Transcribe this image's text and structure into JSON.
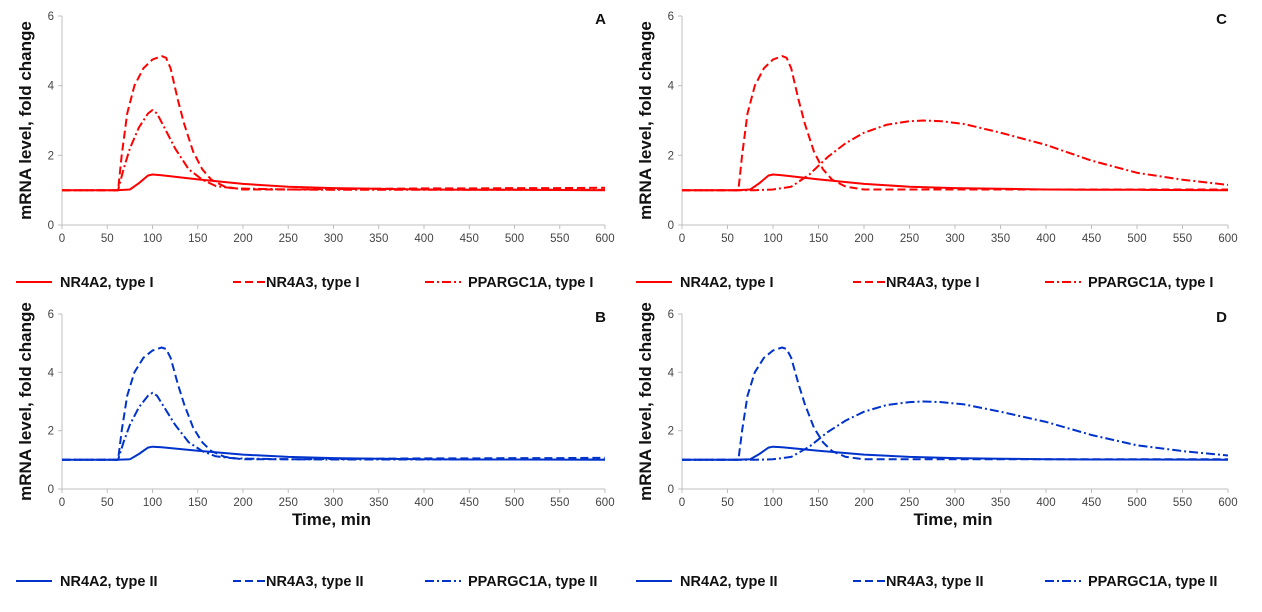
{
  "chart_data": [
    {
      "type": "line",
      "panel": "A",
      "ylabel": "mRNA level, fold change",
      "xlabel": "",
      "xlim": [
        0,
        600
      ],
      "ylim": [
        0,
        6
      ],
      "xticks": [
        0,
        50,
        100,
        150,
        200,
        250,
        300,
        350,
        400,
        450,
        500,
        550,
        600
      ],
      "yticks": [
        0,
        2,
        4,
        6
      ],
      "color": "#ff0000",
      "series": [
        {
          "name": "NR4A2, type I",
          "style": "solid",
          "points": [
            [
              0,
              1
            ],
            [
              60,
              1
            ],
            [
              75,
              1.02
            ],
            [
              85,
              1.2
            ],
            [
              95,
              1.42
            ],
            [
              100,
              1.45
            ],
            [
              110,
              1.43
            ],
            [
              150,
              1.31
            ],
            [
              200,
              1.18
            ],
            [
              250,
              1.1
            ],
            [
              300,
              1.06
            ],
            [
              350,
              1.04
            ],
            [
              400,
              1.02
            ],
            [
              450,
              1.01
            ],
            [
              500,
              1.01
            ],
            [
              600,
              1
            ]
          ]
        },
        {
          "name": "NR4A3, type I",
          "style": "dashed",
          "points": [
            [
              0,
              1
            ],
            [
              62,
              1
            ],
            [
              66,
              2.0
            ],
            [
              72,
              3.2
            ],
            [
              80,
              4.0
            ],
            [
              90,
              4.5
            ],
            [
              100,
              4.75
            ],
            [
              110,
              4.85
            ],
            [
              115,
              4.8
            ],
            [
              120,
              4.5
            ],
            [
              128,
              3.6
            ],
            [
              135,
              2.9
            ],
            [
              145,
              2.1
            ],
            [
              155,
              1.6
            ],
            [
              165,
              1.3
            ],
            [
              180,
              1.1
            ],
            [
              200,
              1.02
            ],
            [
              250,
              1.02
            ],
            [
              300,
              1.03
            ],
            [
              350,
              1.04
            ],
            [
              400,
              1.05
            ],
            [
              450,
              1.05
            ],
            [
              500,
              1.06
            ],
            [
              550,
              1.06
            ],
            [
              600,
              1.07
            ]
          ]
        },
        {
          "name": "PPARGC1A, type I",
          "style": "dashdot",
          "points": [
            [
              0,
              1
            ],
            [
              62,
              1
            ],
            [
              68,
              1.6
            ],
            [
              75,
              2.2
            ],
            [
              85,
              2.8
            ],
            [
              95,
              3.2
            ],
            [
              100,
              3.3
            ],
            [
              105,
              3.2
            ],
            [
              115,
              2.7
            ],
            [
              125,
              2.2
            ],
            [
              140,
              1.6
            ],
            [
              155,
              1.3
            ],
            [
              170,
              1.12
            ],
            [
              190,
              1.05
            ],
            [
              250,
              1.02
            ],
            [
              300,
              1.01
            ],
            [
              400,
              1.01
            ],
            [
              500,
              1.01
            ],
            [
              600,
              1.01
            ]
          ]
        }
      ]
    },
    {
      "type": "line",
      "panel": "C",
      "ylabel": "mRNA level, fold change",
      "xlabel": "",
      "xlim": [
        0,
        600
      ],
      "ylim": [
        0,
        6
      ],
      "xticks": [
        0,
        50,
        100,
        150,
        200,
        250,
        300,
        350,
        400,
        450,
        500,
        550,
        600
      ],
      "yticks": [
        0,
        2,
        4,
        6
      ],
      "color": "#ff0000",
      "series": [
        {
          "name": "NR4A2, type I",
          "style": "solid",
          "points": [
            [
              0,
              1
            ],
            [
              60,
              1
            ],
            [
              75,
              1.02
            ],
            [
              85,
              1.2
            ],
            [
              95,
              1.42
            ],
            [
              100,
              1.45
            ],
            [
              110,
              1.43
            ],
            [
              150,
              1.31
            ],
            [
              200,
              1.18
            ],
            [
              250,
              1.1
            ],
            [
              300,
              1.06
            ],
            [
              350,
              1.04
            ],
            [
              400,
              1.02
            ],
            [
              450,
              1.01
            ],
            [
              500,
              1.01
            ],
            [
              600,
              1
            ]
          ]
        },
        {
          "name": "NR4A3, type I",
          "style": "dashed",
          "points": [
            [
              0,
              1
            ],
            [
              62,
              1
            ],
            [
              66,
              2.0
            ],
            [
              72,
              3.2
            ],
            [
              80,
              4.0
            ],
            [
              90,
              4.5
            ],
            [
              100,
              4.75
            ],
            [
              110,
              4.85
            ],
            [
              115,
              4.8
            ],
            [
              120,
              4.5
            ],
            [
              128,
              3.6
            ],
            [
              135,
              2.9
            ],
            [
              145,
              2.1
            ],
            [
              155,
              1.6
            ],
            [
              165,
              1.3
            ],
            [
              180,
              1.1
            ],
            [
              200,
              1.02
            ],
            [
              250,
              1.02
            ],
            [
              300,
              1.02
            ],
            [
              400,
              1.02
            ],
            [
              500,
              1.02
            ],
            [
              600,
              1.02
            ]
          ]
        },
        {
          "name": "PPARGC1A, type I",
          "style": "dashdot",
          "points": [
            [
              0,
              1
            ],
            [
              80,
              1
            ],
            [
              100,
              1.02
            ],
            [
              120,
              1.1
            ],
            [
              140,
              1.45
            ],
            [
              160,
              1.95
            ],
            [
              180,
              2.35
            ],
            [
              200,
              2.65
            ],
            [
              225,
              2.88
            ],
            [
              250,
              2.98
            ],
            [
              265,
              3.0
            ],
            [
              285,
              2.98
            ],
            [
              310,
              2.9
            ],
            [
              350,
              2.65
            ],
            [
              400,
              2.3
            ],
            [
              450,
              1.85
            ],
            [
              500,
              1.5
            ],
            [
              550,
              1.3
            ],
            [
              600,
              1.15
            ]
          ]
        }
      ]
    },
    {
      "type": "line",
      "panel": "B",
      "ylabel": "mRNA level, fold change",
      "xlabel": "Time, min",
      "xlim": [
        0,
        600
      ],
      "ylim": [
        0,
        6
      ],
      "xticks": [
        0,
        50,
        100,
        150,
        200,
        250,
        300,
        350,
        400,
        450,
        500,
        550,
        600
      ],
      "yticks": [
        0,
        2,
        4,
        6
      ],
      "color": "#0033cc",
      "series": [
        {
          "name": "NR4A2, type II",
          "style": "solid",
          "points": [
            [
              0,
              1
            ],
            [
              60,
              1
            ],
            [
              75,
              1.02
            ],
            [
              85,
              1.2
            ],
            [
              95,
              1.42
            ],
            [
              100,
              1.45
            ],
            [
              110,
              1.43
            ],
            [
              150,
              1.31
            ],
            [
              200,
              1.18
            ],
            [
              250,
              1.1
            ],
            [
              300,
              1.06
            ],
            [
              350,
              1.04
            ],
            [
              400,
              1.02
            ],
            [
              450,
              1.01
            ],
            [
              500,
              1.01
            ],
            [
              600,
              1
            ]
          ]
        },
        {
          "name": "NR4A3, type II",
          "style": "dashed",
          "points": [
            [
              0,
              1
            ],
            [
              62,
              1
            ],
            [
              66,
              2.0
            ],
            [
              72,
              3.2
            ],
            [
              80,
              4.0
            ],
            [
              90,
              4.5
            ],
            [
              100,
              4.75
            ],
            [
              110,
              4.85
            ],
            [
              115,
              4.8
            ],
            [
              120,
              4.5
            ],
            [
              128,
              3.6
            ],
            [
              135,
              2.9
            ],
            [
              145,
              2.1
            ],
            [
              155,
              1.6
            ],
            [
              165,
              1.3
            ],
            [
              180,
              1.1
            ],
            [
              200,
              1.02
            ],
            [
              250,
              1.02
            ],
            [
              300,
              1.03
            ],
            [
              350,
              1.04
            ],
            [
              400,
              1.05
            ],
            [
              450,
              1.05
            ],
            [
              500,
              1.06
            ],
            [
              550,
              1.06
            ],
            [
              600,
              1.07
            ]
          ]
        },
        {
          "name": "PPARGC1A, type II",
          "style": "dashdot",
          "points": [
            [
              0,
              1
            ],
            [
              62,
              1
            ],
            [
              68,
              1.6
            ],
            [
              75,
              2.2
            ],
            [
              85,
              2.8
            ],
            [
              95,
              3.2
            ],
            [
              100,
              3.3
            ],
            [
              105,
              3.2
            ],
            [
              115,
              2.7
            ],
            [
              125,
              2.2
            ],
            [
              140,
              1.6
            ],
            [
              155,
              1.3
            ],
            [
              170,
              1.12
            ],
            [
              190,
              1.05
            ],
            [
              250,
              1.02
            ],
            [
              300,
              1.01
            ],
            [
              400,
              1.01
            ],
            [
              500,
              1.01
            ],
            [
              600,
              1.01
            ]
          ]
        }
      ]
    },
    {
      "type": "line",
      "panel": "D",
      "ylabel": "mRNA level, fold change",
      "xlabel": "Time, min",
      "xlim": [
        0,
        600
      ],
      "ylim": [
        0,
        6
      ],
      "xticks": [
        0,
        50,
        100,
        150,
        200,
        250,
        300,
        350,
        400,
        450,
        500,
        550,
        600
      ],
      "yticks": [
        0,
        2,
        4,
        6
      ],
      "color": "#0033cc",
      "series": [
        {
          "name": "NR4A2, type II",
          "style": "solid",
          "points": [
            [
              0,
              1
            ],
            [
              60,
              1
            ],
            [
              75,
              1.02
            ],
            [
              85,
              1.2
            ],
            [
              95,
              1.42
            ],
            [
              100,
              1.45
            ],
            [
              110,
              1.43
            ],
            [
              150,
              1.31
            ],
            [
              200,
              1.18
            ],
            [
              250,
              1.1
            ],
            [
              300,
              1.06
            ],
            [
              350,
              1.04
            ],
            [
              400,
              1.02
            ],
            [
              450,
              1.01
            ],
            [
              500,
              1.01
            ],
            [
              600,
              1
            ]
          ]
        },
        {
          "name": "NR4A3, type II",
          "style": "dashed",
          "points": [
            [
              0,
              1
            ],
            [
              62,
              1
            ],
            [
              66,
              2.0
            ],
            [
              72,
              3.2
            ],
            [
              80,
              4.0
            ],
            [
              90,
              4.5
            ],
            [
              100,
              4.75
            ],
            [
              110,
              4.85
            ],
            [
              115,
              4.8
            ],
            [
              120,
              4.5
            ],
            [
              128,
              3.6
            ],
            [
              135,
              2.9
            ],
            [
              145,
              2.1
            ],
            [
              155,
              1.6
            ],
            [
              165,
              1.3
            ],
            [
              180,
              1.1
            ],
            [
              200,
              1.02
            ],
            [
              250,
              1.02
            ],
            [
              300,
              1.02
            ],
            [
              400,
              1.02
            ],
            [
              500,
              1.02
            ],
            [
              600,
              1.02
            ]
          ]
        },
        {
          "name": "PPARGC1A, type II",
          "style": "dashdot",
          "points": [
            [
              0,
              1
            ],
            [
              80,
              1
            ],
            [
              100,
              1.02
            ],
            [
              120,
              1.1
            ],
            [
              140,
              1.45
            ],
            [
              160,
              1.95
            ],
            [
              180,
              2.35
            ],
            [
              200,
              2.65
            ],
            [
              225,
              2.88
            ],
            [
              250,
              2.98
            ],
            [
              265,
              3.0
            ],
            [
              285,
              2.98
            ],
            [
              310,
              2.9
            ],
            [
              350,
              2.65
            ],
            [
              400,
              2.3
            ],
            [
              450,
              1.85
            ],
            [
              500,
              1.5
            ],
            [
              550,
              1.3
            ],
            [
              600,
              1.15
            ]
          ]
        }
      ]
    }
  ]
}
